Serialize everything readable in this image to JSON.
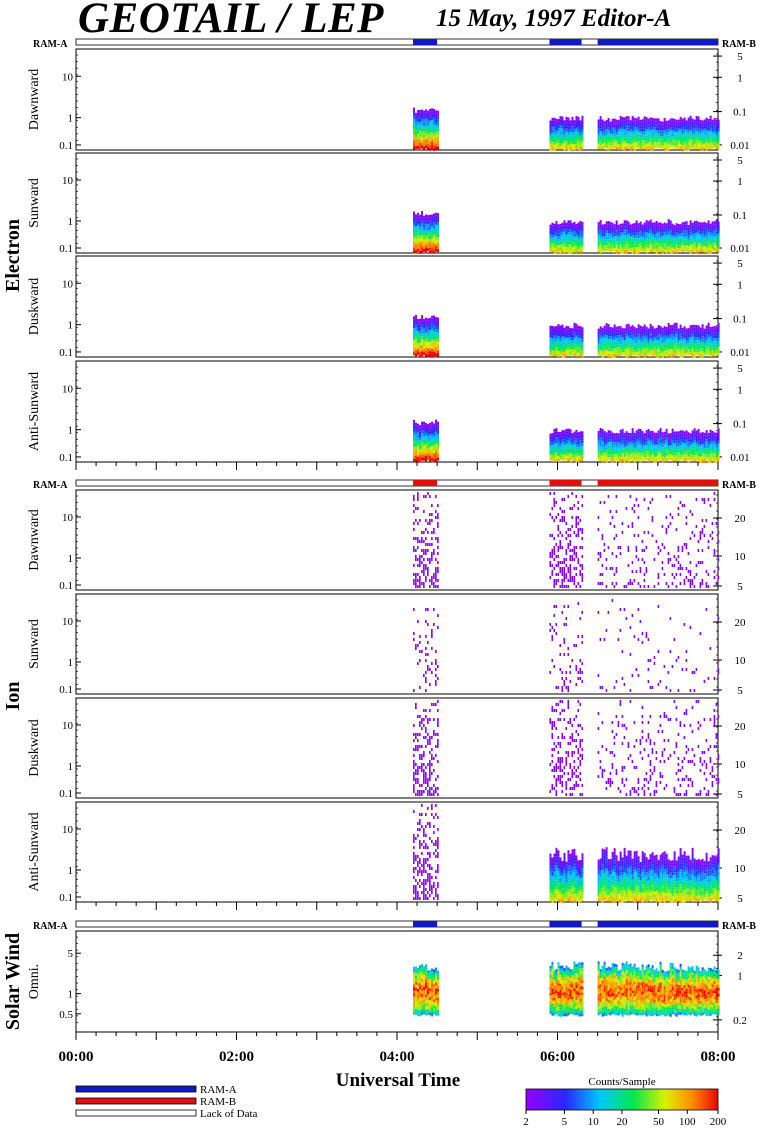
{
  "header": {
    "title": "GEOTAIL / LEP",
    "subtitle": "15 May, 1997   Editor-A"
  },
  "colors": {
    "ram_a": "#1018c8",
    "ram_b": "#e01010"
  },
  "chart_data": {
    "type": "heatmap",
    "xlabel": "Universal Time",
    "x_ticks": [
      "00:00",
      "02:00",
      "04:00",
      "06:00",
      "08:00"
    ],
    "x_range_hours": [
      0,
      8
    ],
    "data_intervals_hours": [
      [
        4.2,
        4.5
      ],
      [
        5.9,
        6.3
      ],
      [
        6.5,
        8.0
      ]
    ],
    "ram_bars": [
      {
        "label_left": "RAM-A",
        "label_right": "RAM-B",
        "color": "ram_a"
      },
      {
        "label_left": "RAM-A",
        "label_right": "RAM-B",
        "color": "ram_b"
      },
      {
        "label_left": "RAM-A",
        "label_right": "RAM-B",
        "color": "ram_a"
      }
    ],
    "groups": [
      {
        "name": "Electron",
        "panels": [
          {
            "label": "Dawnward",
            "left_ticks": [
              "10",
              "1",
              "0.1"
            ],
            "right_ticks": [
              "5",
              "1",
              "0.1",
              "0.01"
            ]
          },
          {
            "label": "Sunward",
            "left_ticks": [
              "10",
              "1",
              "0.1"
            ],
            "right_ticks": [
              "5",
              "1",
              "0.1",
              "0.01"
            ]
          },
          {
            "label": "Duskward",
            "left_ticks": [
              "10",
              "1",
              "0.1"
            ],
            "right_ticks": [
              "5",
              "1",
              "0.1",
              "0.01"
            ]
          },
          {
            "label": "Anti-Sunward",
            "left_ticks": [
              "10",
              "1",
              "0.1"
            ],
            "right_ticks": [
              "5",
              "1",
              "0.1",
              "0.01"
            ]
          }
        ]
      },
      {
        "name": "Ion",
        "panels": [
          {
            "label": "Dawnward",
            "left_ticks": [
              "10",
              "1",
              "0.1"
            ],
            "right_ticks": [
              "20",
              "10",
              "5"
            ]
          },
          {
            "label": "Sunward",
            "left_ticks": [
              "10",
              "1",
              "0.1"
            ],
            "right_ticks": [
              "20",
              "10",
              "5"
            ]
          },
          {
            "label": "Duskward",
            "left_ticks": [
              "10",
              "1",
              "0.1"
            ],
            "right_ticks": [
              "20",
              "10",
              "5"
            ]
          },
          {
            "label": "Anti-Sunward",
            "left_ticks": [
              "10",
              "1",
              "0.1"
            ],
            "right_ticks": [
              "20",
              "10",
              "5"
            ]
          }
        ]
      },
      {
        "name": "Solar Wind",
        "panels": [
          {
            "label": "Omni.",
            "left_ticks": [
              "5",
              "1",
              "0.5"
            ],
            "right_ticks": [
              "2",
              "1",
              "0.2"
            ]
          }
        ]
      }
    ],
    "legend": [
      {
        "label": "RAM-A",
        "color": "#1018c8"
      },
      {
        "label": "RAM-B",
        "color": "#e01010"
      },
      {
        "label": "Lack of Data",
        "color": "#ffffff"
      }
    ],
    "colorbar": {
      "title": "Counts/Sample",
      "ticks": [
        "2",
        "5",
        "10",
        "20",
        "50",
        "100",
        "200"
      ]
    }
  }
}
